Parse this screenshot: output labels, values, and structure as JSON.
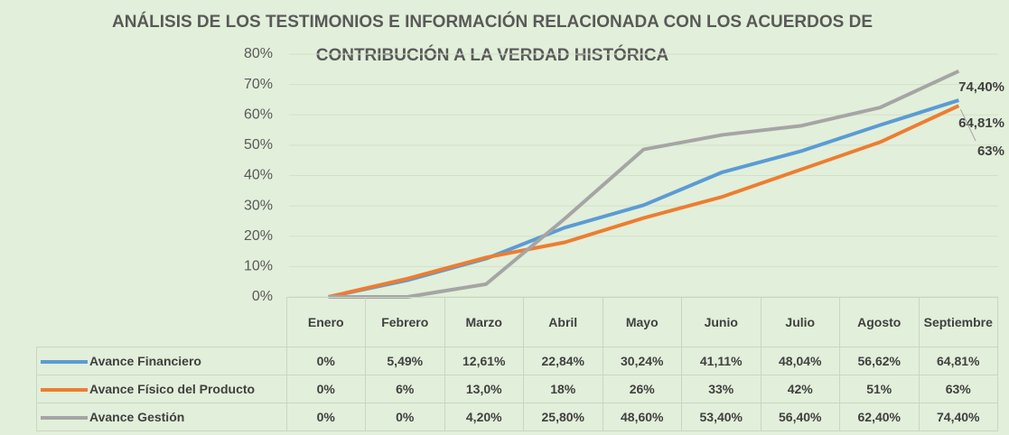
{
  "chart_data": {
    "type": "line",
    "title": "ANÁLISIS DE LOS TESTIMONIOS E INFORMACIÓN RELACIONADA CON LOS ACUERDOS DE CONTRIBUCIÓN A LA VERDAD HISTÓRICA",
    "categories": [
      "Enero",
      "Febrero",
      "Marzo",
      "Abril",
      "Mayo",
      "Junio",
      "Julio",
      "Agosto",
      "Septiembre"
    ],
    "ylim": [
      0,
      80
    ],
    "yticks": [
      {
        "value": 0,
        "label": "0%"
      },
      {
        "value": 10,
        "label": "10%"
      },
      {
        "value": 20,
        "label": "20%"
      },
      {
        "value": 30,
        "label": "30%"
      },
      {
        "value": 40,
        "label": "40%"
      },
      {
        "value": 50,
        "label": "50%"
      },
      {
        "value": 60,
        "label": "60%"
      },
      {
        "value": 70,
        "label": "70%"
      },
      {
        "value": 80,
        "label": "80%"
      }
    ],
    "grid": true,
    "series": [
      {
        "name": "Avance Financiero",
        "color": "#5b9bd5",
        "values": [
          0,
          5.49,
          12.61,
          22.84,
          30.24,
          41.11,
          48.04,
          56.62,
          64.81
        ],
        "value_labels": [
          "0%",
          "5,49%",
          "12,61%",
          "22,84%",
          "30,24%",
          "41,11%",
          "48,04%",
          "56,62%",
          "64,81%"
        ]
      },
      {
        "name": "Avance Físico del Producto",
        "color": "#ed7d31",
        "values": [
          0,
          6,
          13.0,
          18,
          26,
          33,
          42,
          51,
          63
        ],
        "value_labels": [
          "0%",
          "6%",
          "13,0%",
          "18%",
          "26%",
          "33%",
          "42%",
          "51%",
          "63%"
        ]
      },
      {
        "name": "Avance Gestión",
        "color": "#a5a5a5",
        "values": [
          0,
          0,
          4.2,
          25.8,
          48.6,
          53.4,
          56.4,
          62.4,
          74.4
        ],
        "value_labels": [
          "0%",
          "0%",
          "4,20%",
          "25,80%",
          "48,60%",
          "53,40%",
          "56,40%",
          "62,40%",
          "74,40%"
        ]
      }
    ]
  }
}
